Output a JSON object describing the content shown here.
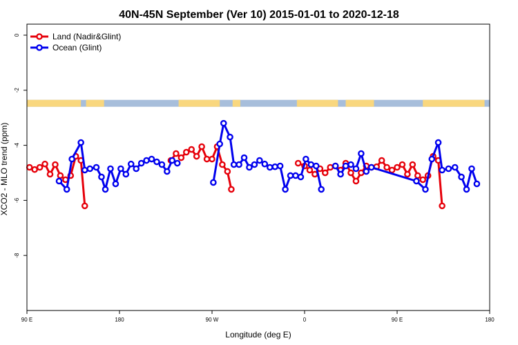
{
  "chart_data": {
    "type": "line",
    "title": "40N-45N September (Ver 10)   2015-01-01 to 2020-12-18",
    "xlabel": "Longitude (deg E)",
    "ylabel": "XCO2 - MLO trend (ppm)",
    "xlim": [
      90,
      450
    ],
    "ylim": [
      -10,
      0.4
    ],
    "x_reversed": false,
    "y_reversed": true,
    "x_ticks": [
      {
        "value": 90,
        "label": "90 E"
      },
      {
        "value": 162,
        "label": "180"
      },
      {
        "value": 234,
        "label": "90 W"
      },
      {
        "value": 306,
        "label": "0"
      },
      {
        "value": 378,
        "label": "90 E"
      },
      {
        "value": 450,
        "label": "180"
      }
    ],
    "y_ticks": [
      {
        "value": 0,
        "label": "0"
      },
      {
        "value": -2,
        "label": "-2"
      },
      {
        "value": -4,
        "label": "-4"
      },
      {
        "value": -6,
        "label": "-6"
      },
      {
        "value": -8,
        "label": "-8"
      }
    ],
    "grid": false,
    "legend_position": "top-left",
    "land_ocean_strip": {
      "y_range": [
        -2.35,
        -2.6
      ],
      "land_color": "#f9d77e",
      "ocean_color": "#a7bedb",
      "land_segments": [
        [
          90,
          132
        ],
        [
          136,
          150
        ],
        [
          208,
          240
        ],
        [
          250,
          256
        ],
        [
          300,
          332
        ],
        [
          338,
          360
        ],
        [
          398,
          446
        ]
      ]
    },
    "series": [
      {
        "name": "Land (Nadir&Glint)",
        "color": "#e6000a",
        "segments": [
          [
            [
              92,
              -4.8
            ],
            [
              96,
              -4.88
            ],
            [
              100,
              -4.8
            ],
            [
              104,
              -4.68
            ],
            [
              108,
              -5.05
            ],
            [
              112,
              -4.7
            ],
            [
              116,
              -5.1
            ],
            [
              120,
              -5.25
            ],
            [
              124,
              -5.1
            ],
            [
              128,
              -4.4
            ],
            [
              132,
              -4.55
            ],
            [
              135,
              -6.2
            ]
          ],
          [
            [
              202,
              -4.55
            ],
            [
              206,
              -4.3
            ],
            [
              210,
              -4.45
            ],
            [
              214,
              -4.25
            ],
            [
              218,
              -4.15
            ],
            [
              222,
              -4.4
            ],
            [
              226,
              -4.05
            ],
            [
              230,
              -4.5
            ],
            [
              234,
              -4.5
            ],
            [
              238,
              -4.05
            ],
            [
              242,
              -4.7
            ],
            [
              246,
              -4.95
            ],
            [
              249,
              -5.6
            ]
          ],
          [
            [
              301,
              -4.65
            ],
            [
              306,
              -4.75
            ],
            [
              310,
              -4.9
            ],
            [
              314,
              -5.05
            ],
            [
              318,
              -4.85
            ],
            [
              322,
              -5.0
            ],
            [
              326,
              -4.8
            ],
            [
              330,
              -4.75
            ],
            [
              334,
              -4.9
            ],
            [
              338,
              -4.65
            ],
            [
              342,
              -5.0
            ],
            [
              346,
              -5.3
            ],
            [
              350,
              -5.0
            ],
            [
              354,
              -4.75
            ],
            [
              358,
              -4.8
            ],
            [
              362,
              -4.78
            ],
            [
              366,
              -4.55
            ],
            [
              370,
              -4.8
            ],
            [
              374,
              -4.9
            ],
            [
              378,
              -4.8
            ],
            [
              382,
              -4.7
            ],
            [
              386,
              -5.05
            ],
            [
              390,
              -4.7
            ],
            [
              394,
              -5.1
            ],
            [
              398,
              -5.25
            ],
            [
              402,
              -5.1
            ],
            [
              406,
              -4.4
            ],
            [
              410,
              -4.55
            ],
            [
              413,
              -6.2
            ]
          ]
        ]
      },
      {
        "name": "Ocean (Glint)",
        "color": "#0000ee",
        "segments": [
          [
            [
              115,
              -5.3
            ],
            [
              121,
              -5.6
            ],
            [
              125,
              -4.5
            ],
            [
              132,
              -3.9
            ],
            [
              135,
              -4.9
            ],
            [
              139,
              -4.85
            ],
            [
              144,
              -4.8
            ],
            [
              148,
              -5.15
            ],
            [
              151,
              -5.6
            ],
            [
              155,
              -4.85
            ],
            [
              159,
              -5.4
            ],
            [
              163,
              -4.85
            ],
            [
              167,
              -5.05
            ],
            [
              171,
              -4.68
            ],
            [
              175,
              -4.85
            ],
            [
              179,
              -4.65
            ],
            [
              183,
              -4.55
            ],
            [
              187,
              -4.5
            ],
            [
              191,
              -4.6
            ],
            [
              195,
              -4.7
            ],
            [
              199,
              -4.95
            ],
            [
              203,
              -4.55
            ],
            [
              207,
              -4.65
            ]
          ],
          [
            [
              235,
              -5.35
            ],
            [
              240,
              -3.95
            ],
            [
              243,
              -3.2
            ],
            [
              248,
              -3.7
            ],
            [
              251,
              -4.7
            ],
            [
              255,
              -4.7
            ],
            [
              259,
              -4.45
            ],
            [
              263,
              -4.8
            ],
            [
              267,
              -4.7
            ],
            [
              271,
              -4.55
            ],
            [
              275,
              -4.68
            ],
            [
              279,
              -4.8
            ],
            [
              283,
              -4.78
            ],
            [
              287,
              -4.75
            ],
            [
              291,
              -5.6
            ],
            [
              295,
              -5.1
            ],
            [
              299,
              -5.1
            ],
            [
              303,
              -5.15
            ],
            [
              307,
              -4.5
            ],
            [
              311,
              -4.7
            ],
            [
              315,
              -4.75
            ],
            [
              319,
              -5.6
            ]
          ],
          [
            [
              330,
              -4.75
            ],
            [
              334,
              -5.05
            ],
            [
              338,
              -4.75
            ],
            [
              342,
              -4.7
            ],
            [
              346,
              -4.85
            ],
            [
              350,
              -4.3
            ],
            [
              354,
              -4.95
            ],
            [
              358,
              -4.8
            ],
            [
              393,
              -5.3
            ],
            [
              400,
              -5.6
            ],
            [
              405,
              -4.5
            ],
            [
              410,
              -3.9
            ],
            [
              413,
              -4.9
            ],
            [
              418,
              -4.85
            ],
            [
              423,
              -4.8
            ],
            [
              428,
              -5.15
            ],
            [
              432,
              -5.6
            ],
            [
              436,
              -4.85
            ],
            [
              440,
              -5.4
            ]
          ]
        ]
      }
    ]
  }
}
